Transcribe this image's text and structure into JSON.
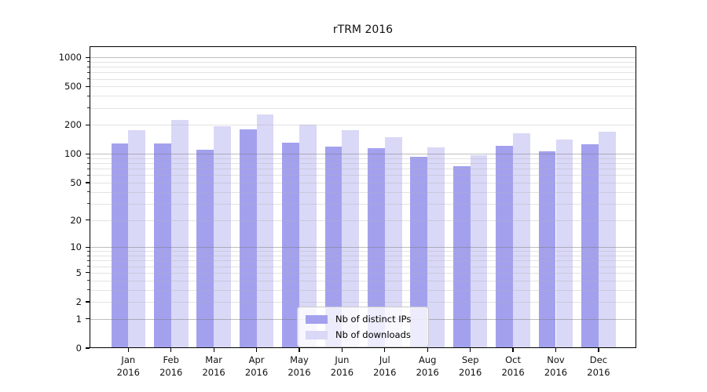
{
  "figure": {
    "background": "#ffffff",
    "frame_color": "#000000"
  },
  "chart_data": {
    "type": "bar",
    "title": "rTRM 2016",
    "xlabel": "",
    "ylabel": "",
    "year": "2016",
    "categories": [
      "Jan",
      "Feb",
      "Mar",
      "Apr",
      "May",
      "Jun",
      "Jul",
      "Aug",
      "Sep",
      "Oct",
      "Nov",
      "Dec"
    ],
    "series": [
      {
        "name": "Nb of distinct IPs",
        "color": "#a3a1ee",
        "values": [
          128,
          128,
          111,
          180,
          132,
          119,
          114,
          93,
          75,
          121,
          107,
          127
        ]
      },
      {
        "name": "Nb of downloads",
        "color": "#d9d8f7",
        "values": [
          178,
          224,
          195,
          257,
          200,
          177,
          149,
          116,
          97,
          164,
          140,
          169
        ]
      }
    ],
    "yscale": "log10(value+1)",
    "yticks": [
      1000,
      500,
      200,
      100,
      50,
      20,
      10,
      5,
      2,
      1,
      0
    ],
    "ylim": [
      0,
      1300
    ],
    "grid": true,
    "legend_position": "lower-center"
  }
}
